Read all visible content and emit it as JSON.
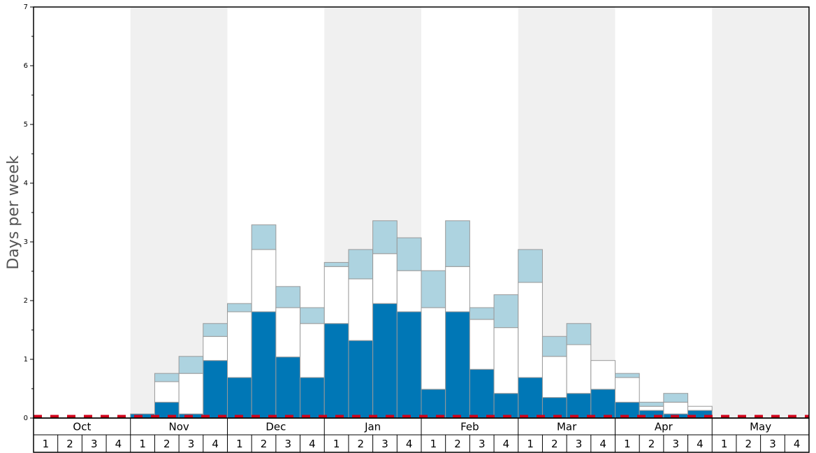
{
  "chart_data": {
    "type": "stacked-bar",
    "y_label": "Days per week",
    "months": [
      "Oct",
      "Nov",
      "Dec",
      "Jan",
      "Feb",
      "Mar",
      "Apr",
      "May"
    ],
    "categories": [
      "1",
      "2",
      "3",
      "4",
      "1",
      "2",
      "3",
      "4",
      "1",
      "2",
      "3",
      "4",
      "1",
      "2",
      "3",
      "4",
      "1",
      "2",
      "3",
      "4",
      "1",
      "2",
      "3",
      "4",
      "1",
      "2",
      "3",
      "4",
      "1",
      "2",
      "3",
      "4"
    ],
    "series": [
      {
        "color": "#0077b6",
        "values": [
          0,
          0,
          0,
          0,
          0.07,
          0.27,
          0.07,
          0.98,
          0.69,
          1.81,
          1.04,
          0.69,
          1.61,
          1.32,
          1.95,
          1.81,
          0.49,
          1.81,
          0.83,
          0.42,
          0.69,
          0.35,
          0.42,
          0.49,
          0.27,
          0.13,
          0.07,
          0.13,
          0,
          0,
          0,
          0
        ]
      },
      {
        "color": "#ffffff",
        "values": [
          0,
          0,
          0,
          0,
          0,
          0.35,
          0.69,
          0.41,
          1.12,
          1.06,
          0.84,
          0.92,
          0.97,
          1.05,
          0.85,
          0.7,
          1.39,
          0.77,
          0.85,
          1.12,
          1.62,
          0.7,
          0.83,
          0.49,
          0.42,
          0.07,
          0.2,
          0.07,
          0,
          0,
          0,
          0
        ]
      },
      {
        "color": "#add3e0",
        "values": [
          0,
          0,
          0,
          0,
          0,
          0.14,
          0.29,
          0.22,
          0.14,
          0.42,
          0.36,
          0.27,
          0.07,
          0.5,
          0.56,
          0.56,
          0.63,
          0.78,
          0.2,
          0.56,
          0.56,
          0.34,
          0.36,
          0,
          0.07,
          0.07,
          0.15,
          0,
          0,
          0,
          0,
          0
        ]
      }
    ],
    "reference_line": {
      "value": 0.03,
      "color": "#d0021b"
    },
    "ylim": [
      0,
      7
    ],
    "yticks": [
      0,
      1,
      2,
      3,
      4,
      5,
      6,
      7
    ],
    "minor_yticks": [
      0.5,
      1.5,
      2.5,
      3.5,
      4.5,
      5.5,
      6.5
    ],
    "shade_color": "#f0f0f0"
  }
}
